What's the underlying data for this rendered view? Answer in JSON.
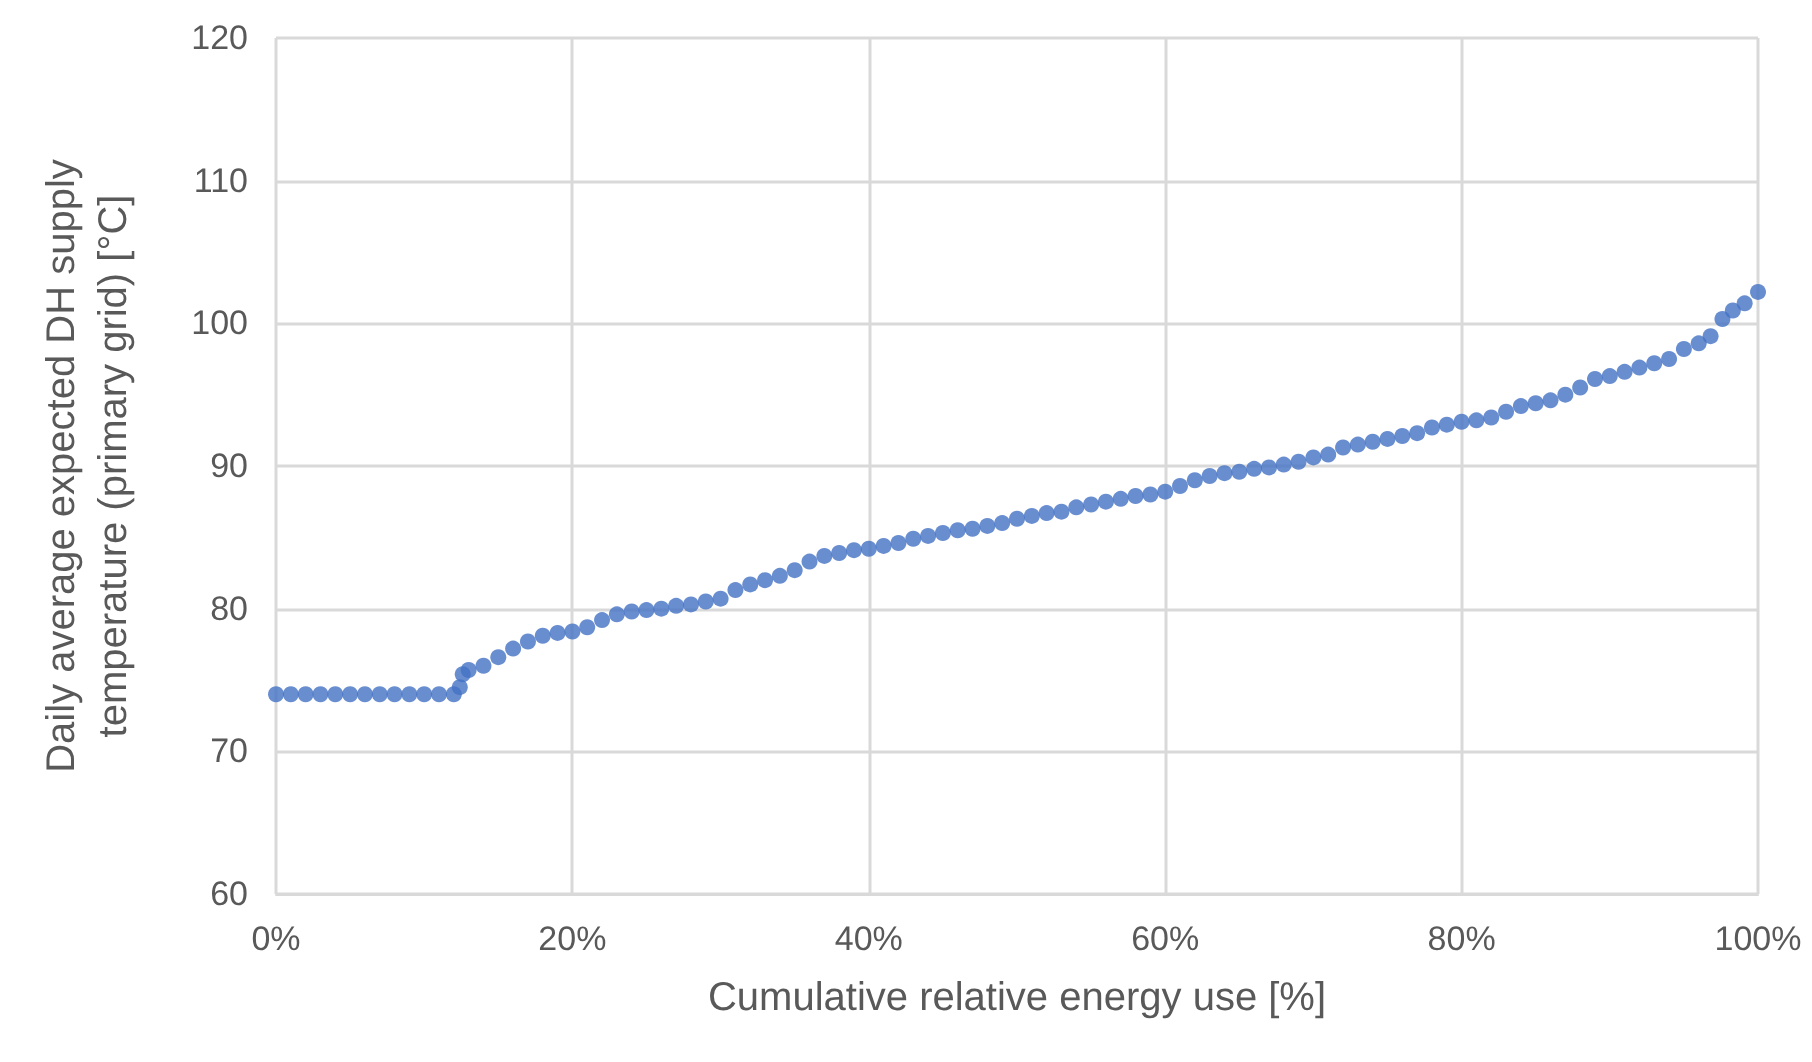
{
  "chart_data": {
    "type": "scatter",
    "xlabel": "Cumulative relative energy use [%]",
    "ylabel": "Daily average expected DH supply\ntemperature (primary grid) [°C]",
    "x": [
      0,
      1,
      2,
      3,
      4,
      5,
      6,
      7,
      8,
      9,
      10,
      11,
      12,
      12.4,
      12.6,
      13,
      14,
      15,
      16,
      17,
      18,
      19,
      20,
      21,
      22,
      23,
      24,
      25,
      26,
      27,
      28,
      29,
      30,
      31,
      32,
      33,
      34,
      35,
      36,
      37,
      38,
      39,
      40,
      41,
      42,
      43,
      44,
      45,
      46,
      47,
      48,
      49,
      50,
      51,
      52,
      53,
      54,
      55,
      56,
      57,
      58,
      59,
      60,
      61,
      62,
      63,
      64,
      65,
      66,
      67,
      68,
      69,
      70,
      71,
      72,
      73,
      74,
      75,
      76,
      77,
      78,
      79,
      80,
      81,
      82,
      83,
      84,
      85,
      86,
      87,
      88,
      89,
      90,
      91,
      92,
      93,
      94,
      95,
      96,
      96.8,
      97.6,
      98.3,
      99.1,
      100
    ],
    "series": [
      {
        "color": "#4472c4",
        "values": [
          74,
          74,
          74,
          74,
          74,
          74,
          74,
          74,
          74,
          74,
          74,
          74,
          74,
          74.5,
          75.4,
          75.7,
          76,
          76.6,
          77.2,
          77.7,
          78.1,
          78.3,
          78.4,
          78.7,
          79.2,
          79.6,
          79.8,
          79.9,
          80,
          80.2,
          80.3,
          80.5,
          80.7,
          81.3,
          81.7,
          82,
          82.3,
          82.7,
          83.3,
          83.7,
          83.9,
          84.1,
          84.2,
          84.4,
          84.6,
          84.9,
          85.1,
          85.3,
          85.5,
          85.6,
          85.8,
          86,
          86.3,
          86.5,
          86.7,
          86.8,
          87.1,
          87.3,
          87.5,
          87.7,
          87.9,
          88,
          88.2,
          88.6,
          89,
          89.3,
          89.5,
          89.6,
          89.8,
          89.9,
          90.1,
          90.3,
          90.6,
          90.8,
          91.3,
          91.5,
          91.7,
          91.9,
          92.1,
          92.3,
          92.7,
          92.9,
          93.1,
          93.2,
          93.4,
          93.8,
          94.2,
          94.4,
          94.6,
          95,
          95.5,
          96.1,
          96.3,
          96.6,
          96.9,
          97.2,
          97.5,
          98.2,
          98.6,
          99.1,
          100.3,
          100.9,
          101.4,
          102.2
        ]
      }
    ],
    "xlim": [
      0,
      100
    ],
    "xticks": [
      {
        "value": 0,
        "label": "0%"
      },
      {
        "value": 20,
        "label": "20%"
      },
      {
        "value": 40,
        "label": "40%"
      },
      {
        "value": 60,
        "label": "60%"
      },
      {
        "value": 80,
        "label": "80%"
      },
      {
        "value": 100,
        "label": "100%"
      }
    ],
    "ylim": [
      60,
      120
    ],
    "yticks": [
      60,
      70,
      80,
      90,
      100,
      110,
      120
    ],
    "grid": true,
    "marker": "circle"
  }
}
